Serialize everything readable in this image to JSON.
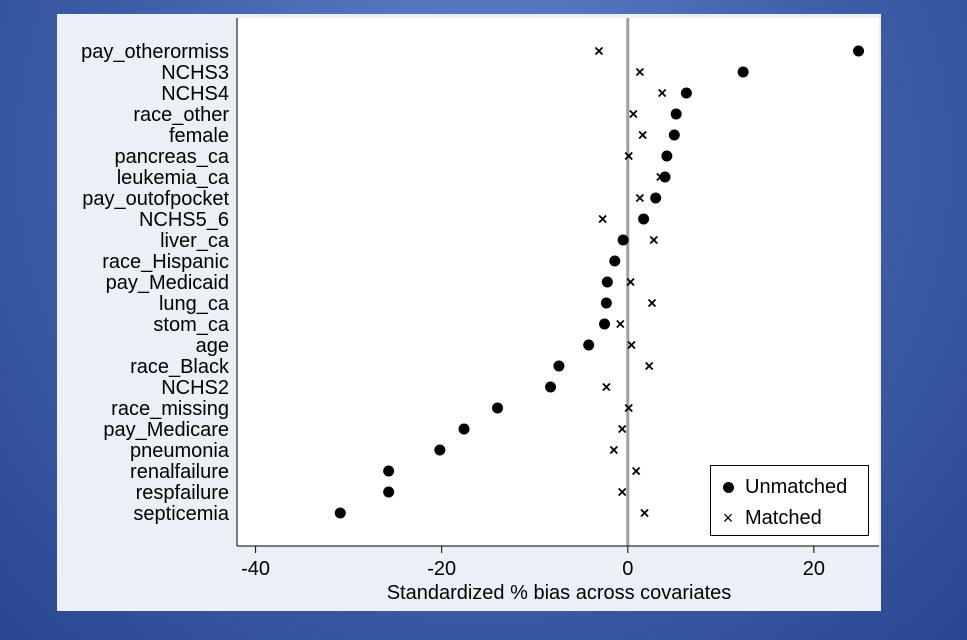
{
  "chart_data": {
    "type": "scatter",
    "orientation": "horizontal-dot-plot",
    "title": "",
    "xlabel": "Standardized % bias across covariates",
    "ylabel": "",
    "xlim": [
      -42,
      27
    ],
    "xticks": [
      -40,
      -20,
      0,
      20
    ],
    "xtick_labels": [
      "-40",
      "-20",
      "0",
      "20"
    ],
    "reference_line_x": 0,
    "grid": false,
    "legend_position": "bottom-right",
    "categories": [
      "pay_otherormiss",
      "NCHS3",
      "NCHS4",
      "race_other",
      "female",
      "pancreas_ca",
      "leukemia_ca",
      "pay_outofpocket",
      "NCHS5_6",
      "liver_ca",
      "race_Hispanic",
      "pay_Medicaid",
      "lung_ca",
      "stom_ca",
      "age",
      "race_Black",
      "NCHS2",
      "race_missing",
      "pay_Medicare",
      "pneumonia",
      "renalfailure",
      "respfailure",
      "septicemia"
    ],
    "series": [
      {
        "name": "Unmatched",
        "marker": "dot",
        "values": [
          24.8,
          12.4,
          6.3,
          5.2,
          5.0,
          4.2,
          4.0,
          3.0,
          1.7,
          -0.5,
          -1.4,
          -2.2,
          -2.3,
          -2.5,
          -4.2,
          -7.4,
          -8.3,
          -14.0,
          -17.6,
          -20.2,
          -25.7,
          -25.7,
          -30.9
        ]
      },
      {
        "name": "Matched",
        "marker": "x",
        "values": [
          -3.1,
          1.3,
          3.7,
          0.6,
          1.6,
          0.1,
          3.5,
          1.3,
          -2.7,
          2.8,
          -1.4,
          0.3,
          2.6,
          -0.8,
          0.4,
          2.3,
          -2.3,
          0.1,
          -0.6,
          -1.5,
          0.9,
          -0.6,
          1.8
        ]
      }
    ],
    "colors": {
      "marker": "#000000",
      "reference_line": "#a0a0a0",
      "plot_bg": "#ffffff",
      "panel_bg": "#eaf0f5"
    }
  }
}
